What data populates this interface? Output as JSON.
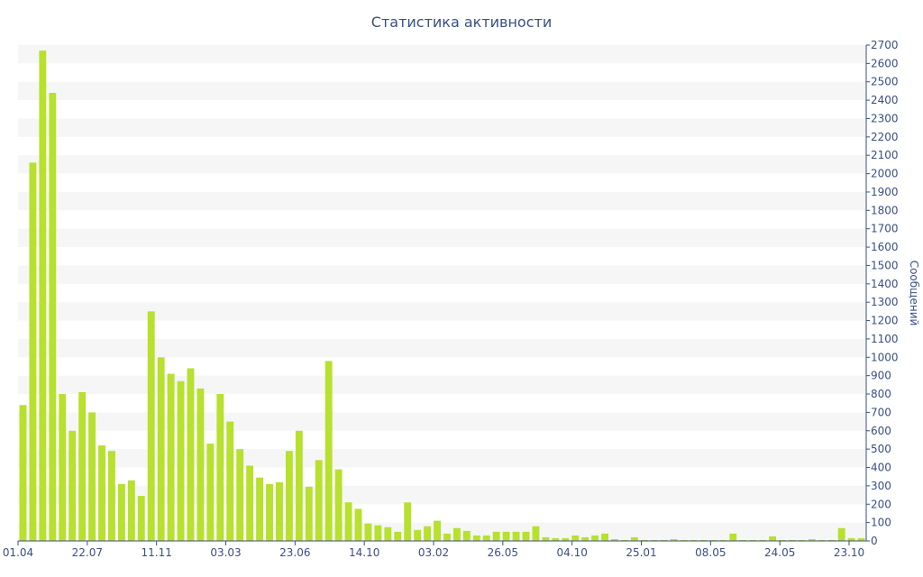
{
  "chart_data": {
    "type": "bar",
    "title": "Статистика активности",
    "ylabel": "Сообщений",
    "xlabel": "",
    "ylim": [
      0,
      2700
    ],
    "y_axis_side": "right",
    "y_ticks": [
      0,
      100,
      200,
      300,
      400,
      500,
      600,
      700,
      800,
      900,
      1000,
      1100,
      1200,
      1300,
      1400,
      1500,
      1600,
      1700,
      1800,
      1900,
      2000,
      2100,
      2200,
      2300,
      2400,
      2500,
      2600,
      2700
    ],
    "x_tick_labels": [
      "01.04",
      "22.07",
      "11.11",
      "03.03",
      "23.06",
      "14.10",
      "03.02",
      "26.05",
      "04.10",
      "25.01",
      "08.05",
      "24.05",
      "23.10"
    ],
    "grid": "alternating horizontal bands",
    "bar_color": "#b8e02e",
    "band_color": "#f6f6f6",
    "values": [
      740,
      2060,
      2670,
      2440,
      800,
      600,
      810,
      700,
      520,
      490,
      310,
      330,
      245,
      1250,
      1000,
      910,
      870,
      940,
      830,
      530,
      800,
      650,
      500,
      410,
      345,
      310,
      320,
      490,
      600,
      295,
      440,
      980,
      390,
      210,
      175,
      95,
      85,
      75,
      50,
      210,
      60,
      80,
      110,
      40,
      70,
      55,
      30,
      30,
      50,
      50,
      50,
      50,
      80,
      20,
      15,
      15,
      30,
      20,
      30,
      40,
      10,
      5,
      20,
      5,
      5,
      5,
      10,
      5,
      5,
      5,
      5,
      5,
      40,
      5,
      5,
      5,
      25,
      5,
      5,
      5,
      10,
      5,
      5,
      70,
      15,
      15
    ]
  }
}
